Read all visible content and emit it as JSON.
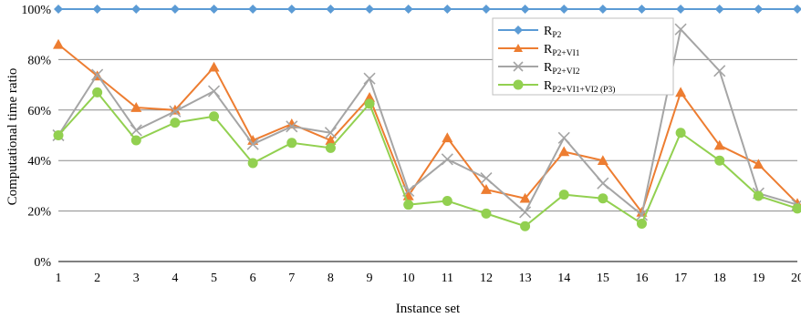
{
  "chart_data": {
    "type": "line",
    "xlabel": "Instance set",
    "ylabel": "Computational time ratio",
    "x": [
      1,
      2,
      3,
      4,
      5,
      6,
      7,
      8,
      9,
      10,
      11,
      12,
      13,
      14,
      15,
      16,
      17,
      18,
      19,
      20
    ],
    "x_tick_labels": [
      "1",
      "2",
      "3",
      "4",
      "5",
      "6",
      "7",
      "8",
      "9",
      "10",
      "11",
      "12",
      "13",
      "14",
      "15",
      "16",
      "17",
      "18",
      "19",
      "20"
    ],
    "ylim": [
      0,
      100
    ],
    "y_ticks": [
      0,
      20,
      40,
      60,
      80,
      100
    ],
    "y_tick_labels": [
      "0%",
      "20%",
      "40%",
      "60%",
      "80%",
      "100%"
    ],
    "grid": "horizontal",
    "legend_position": "top-right",
    "series": [
      {
        "name_main": "R",
        "name_sub": "P2",
        "color": "#5B9BD5",
        "marker": "diamond",
        "values": [
          100,
          100,
          100,
          100,
          100,
          100,
          100,
          100,
          100,
          100,
          100,
          100,
          100,
          100,
          100,
          100,
          100,
          100,
          100,
          100
        ]
      },
      {
        "name_main": "R",
        "name_sub": "P2+VI1",
        "color": "#ED7D31",
        "marker": "triangle",
        "values": [
          86,
          73.5,
          61,
          60,
          77,
          48,
          54.5,
          48,
          65,
          26,
          49,
          28.5,
          25,
          43.5,
          40,
          19.5,
          67,
          46,
          38.5,
          23
        ]
      },
      {
        "name_main": "R",
        "name_sub": "P2+VI2",
        "color": "#A5A5A5",
        "marker": "x",
        "values": [
          50,
          74,
          52,
          59.5,
          67.5,
          46.5,
          53.5,
          51,
          72.5,
          28,
          40.5,
          33,
          19.5,
          49,
          31,
          18.5,
          92,
          75.5,
          27,
          22.5
        ]
      },
      {
        "name_main": "R",
        "name_sub": "P2+VI1+VI2 (P3)",
        "color": "#92D050",
        "marker": "circle",
        "values": [
          50,
          67,
          48,
          55,
          57.5,
          39,
          47,
          45,
          62.5,
          22.5,
          24,
          19,
          14,
          26.5,
          25,
          15,
          51,
          40,
          26,
          21
        ]
      }
    ]
  }
}
